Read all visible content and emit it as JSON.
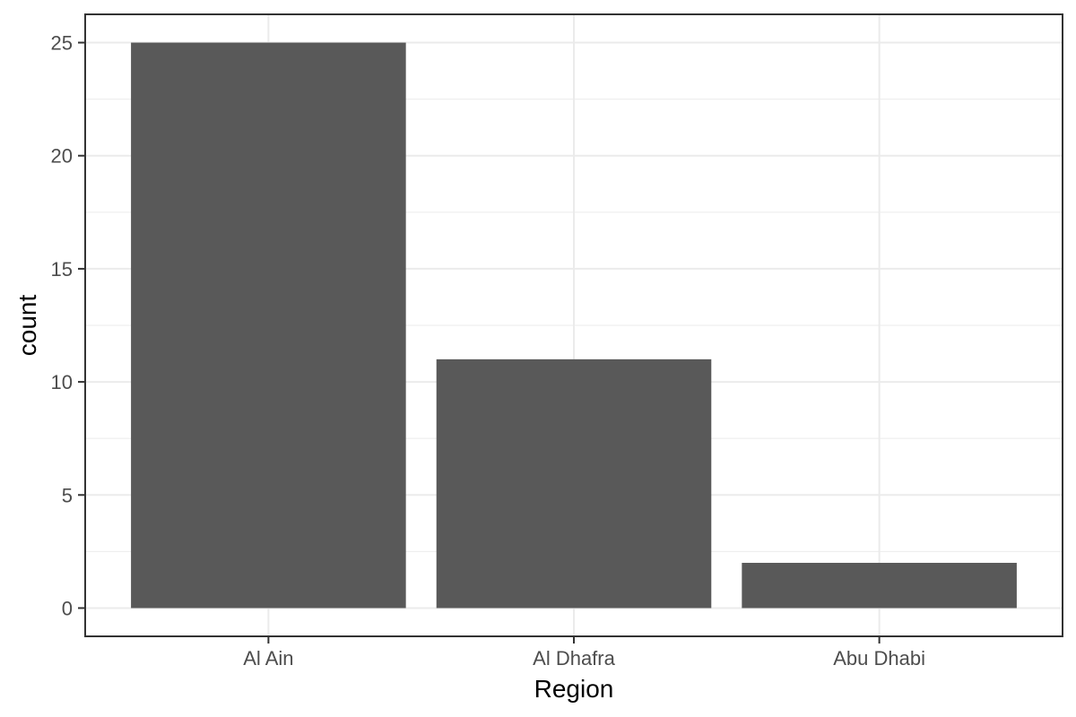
{
  "chart_data": {
    "type": "bar",
    "categories": [
      "Al Ain",
      "Al Dhafra",
      "Abu Dhabi"
    ],
    "values": [
      25,
      11,
      2
    ],
    "xlabel": "Region",
    "ylabel": "count",
    "ylim": [
      -1.25,
      26.25
    ],
    "yticks": [
      0,
      5,
      10,
      15,
      20,
      25
    ],
    "grid": true,
    "bar_color": "#595959",
    "grid_color": "#ebebeb",
    "border_color": "#333333",
    "background_color": "#ffffff"
  }
}
